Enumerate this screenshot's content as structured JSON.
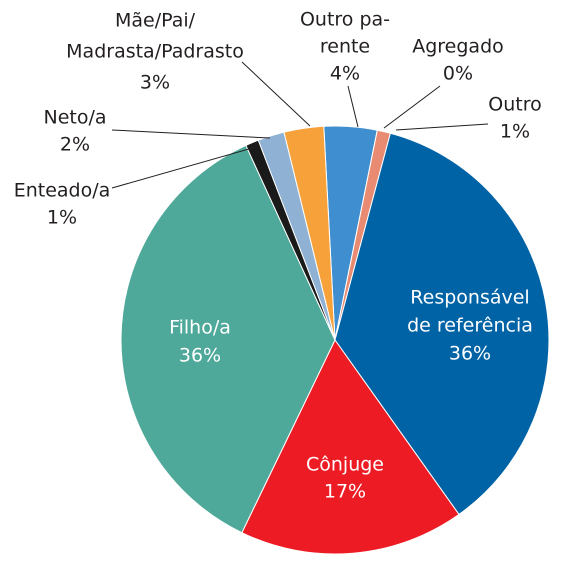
{
  "chart_data": {
    "type": "pie",
    "categories": [
      [
        "Outro pa-",
        "rente"
      ],
      [
        "Agregado"
      ],
      [
        "Outro"
      ],
      [
        "Responsável",
        "de referência"
      ],
      [
        "Cônjuge"
      ],
      [
        "Filho/a"
      ],
      [
        "Enteado/a"
      ],
      [
        "Neto/a"
      ],
      [
        "Mãe/Pai/",
        "Madrasta/Padrasto"
      ]
    ],
    "values": [
      4,
      0,
      1,
      36,
      17,
      36,
      1,
      2,
      3
    ],
    "value_labels": [
      "4%",
      "0%",
      "1%",
      "36%",
      "17%",
      "36%",
      "1%",
      "2%",
      "3%"
    ],
    "colors": [
      "#3f8fd0",
      "#e98a72",
      "#e98a72",
      "#0063a6",
      "#ed1c24",
      "#4fa99a",
      "#1a1a1a",
      "#8fb1d3",
      "#f6a13a"
    ]
  }
}
